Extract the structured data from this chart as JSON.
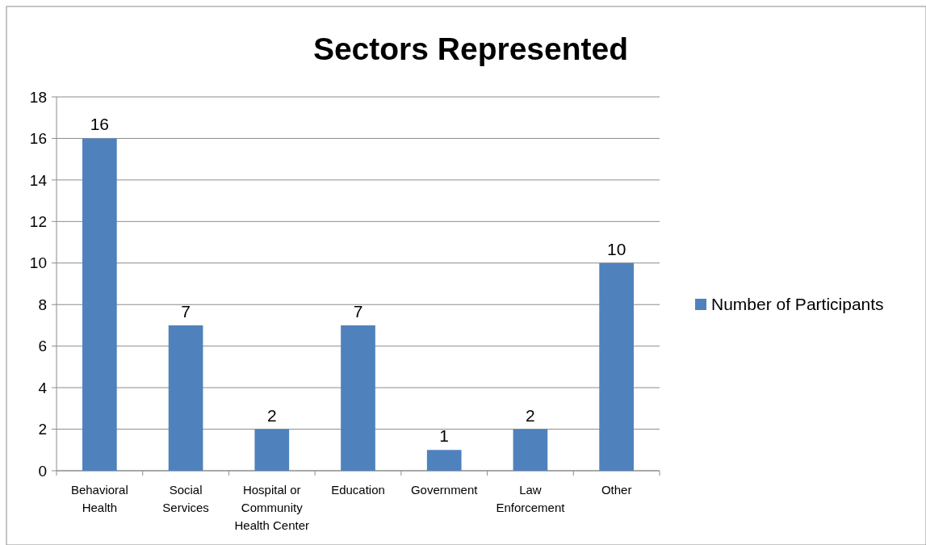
{
  "chart_data": {
    "type": "bar",
    "title": "Sectors Represented",
    "categories": [
      "Behavioral Health",
      "Social Services",
      "Hospital or Community Health Center",
      "Education",
      "Government",
      "Law Enforcement",
      "Other"
    ],
    "series": [
      {
        "name": "Number of Participants",
        "color": "#4f81bd",
        "values": [
          16,
          7,
          2,
          7,
          1,
          2,
          10
        ]
      }
    ],
    "ylim": [
      0,
      18
    ],
    "yticks": [
      0,
      2,
      4,
      6,
      8,
      10,
      12,
      14,
      16,
      18
    ],
    "grid": "y",
    "legend": "right",
    "data_labels": true
  }
}
